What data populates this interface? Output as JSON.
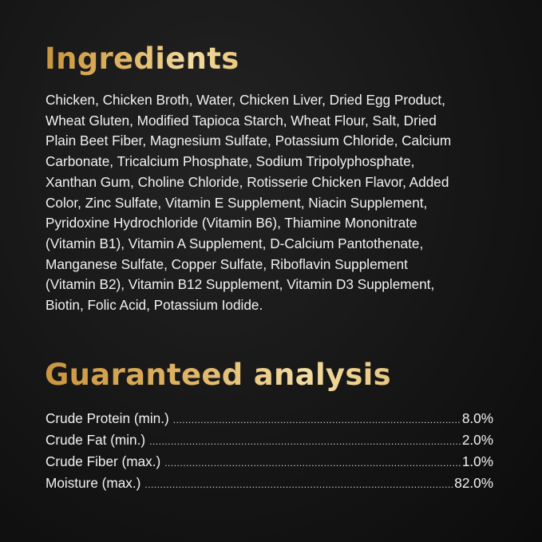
{
  "ingredients": {
    "title": "Ingredients",
    "lines": [
      "Chicken, Chicken Broth, Water, Chicken Liver, Dried Egg Product,",
      "Wheat Gluten, Modified Tapioca Starch, Wheat Flour, Salt, Dried",
      "Plain Beet Fiber, Magnesium Sulfate, Potassium Chloride, Calcium",
      "Carbonate, Tricalcium Phosphate, Sodium Tripolyphosphate,",
      "Xanthan Gum, Choline Chloride, Rotisserie Chicken Flavor, Added",
      "Color, Zinc Sulfate, Vitamin E Supplement, Niacin Supplement,",
      "Pyridoxine Hydrochloride (Vitamin B6), Thiamine Mononitrate",
      "(Vitamin B1), Vitamin A Supplement,  D-Calcium Pantothenate,",
      "Manganese Sulfate, Copper Sulfate, Riboflavin Supplement",
      "(Vitamin B2), Vitamin B12 Supplement, Vitamin D3 Supplement,",
      "Biotin, Folic Acid, Potassium Iodide."
    ]
  },
  "analysis": {
    "title": "Guaranteed analysis",
    "rows": [
      {
        "label": "Crude Protein (min.)",
        "value": "8.0%"
      },
      {
        "label": "Crude Fat (min.)",
        "value": "2.0%"
      },
      {
        "label": "Crude Fiber (max.)",
        "value": "1.0%"
      },
      {
        "label": "Moisture (max.)",
        "value": "82.0%"
      }
    ]
  },
  "colors": {
    "background": "#161616",
    "heading_gold": "#e2b768",
    "text": "#f2f2f2"
  }
}
